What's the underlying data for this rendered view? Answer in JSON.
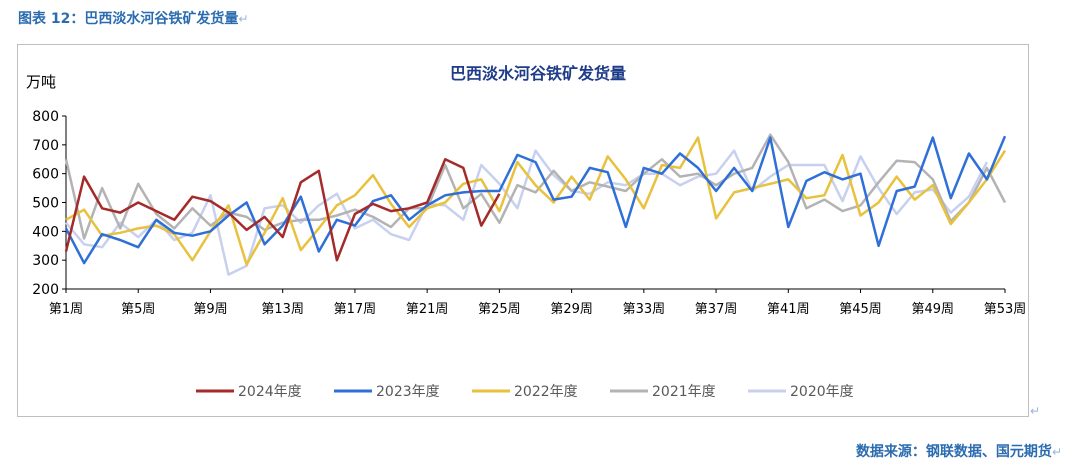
{
  "figure_caption": "图表 12：巴西淡水河谷铁矿发货量",
  "source_note": "数据来源：钢联数据、国元期货",
  "return_mark": "↵",
  "chart_data": {
    "type": "line",
    "title": "巴西淡水河谷铁矿发货量",
    "ylabel": "万吨",
    "xlabel": "",
    "ylim": [
      200,
      800
    ],
    "y_ticks": [
      200,
      300,
      400,
      500,
      600,
      700,
      800
    ],
    "x_tick_labels": [
      "第1周",
      "第5周",
      "第9周",
      "第13周",
      "第17周",
      "第21周",
      "第25周",
      "第29周",
      "第33周",
      "第37周",
      "第41周",
      "第45周",
      "第49周",
      "第53周"
    ],
    "x_tick_weeks": [
      1,
      5,
      9,
      13,
      17,
      21,
      25,
      29,
      33,
      37,
      41,
      45,
      49,
      53
    ],
    "weeks": [
      1,
      2,
      3,
      4,
      5,
      6,
      7,
      8,
      9,
      10,
      11,
      12,
      13,
      14,
      15,
      16,
      17,
      18,
      19,
      20,
      21,
      22,
      23,
      24,
      25,
      26,
      27,
      28,
      29,
      30,
      31,
      32,
      33,
      34,
      35,
      36,
      37,
      38,
      39,
      40,
      41,
      42,
      43,
      44,
      45,
      46,
      47,
      48,
      49,
      50,
      51,
      52,
      53
    ],
    "grid": false,
    "legend_position": "bottom",
    "series": [
      {
        "name": "2024年度",
        "color": "#a52a2a",
        "values": [
          330,
          590,
          480,
          465,
          500,
          470,
          440,
          520,
          505,
          465,
          405,
          450,
          380,
          570,
          610,
          300,
          460,
          495,
          470,
          480,
          500,
          650,
          620,
          420,
          530,
          null,
          null,
          null,
          null,
          null,
          null,
          null,
          null,
          null,
          null,
          null,
          null,
          null,
          null,
          null,
          null,
          null,
          null,
          null,
          null,
          null,
          null,
          null,
          null,
          null,
          null,
          null,
          null
        ]
      },
      {
        "name": "2023年度",
        "color": "#2f6fd8",
        "values": [
          410,
          290,
          390,
          370,
          345,
          440,
          395,
          385,
          400,
          455,
          500,
          355,
          420,
          520,
          330,
          440,
          420,
          505,
          525,
          440,
          490,
          525,
          535,
          540,
          540,
          665,
          640,
          510,
          520,
          620,
          605,
          415,
          620,
          600,
          670,
          620,
          540,
          620,
          540,
          725,
          415,
          575,
          605,
          580,
          600,
          350,
          540,
          555,
          725,
          515,
          670,
          580,
          730
        ]
      },
      {
        "name": "2022年度",
        "color": "#e8c13d",
        "values": [
          440,
          475,
          385,
          395,
          410,
          420,
          390,
          300,
          400,
          490,
          285,
          395,
          515,
          335,
          410,
          490,
          525,
          595,
          495,
          415,
          480,
          500,
          565,
          580,
          470,
          640,
          560,
          500,
          590,
          510,
          660,
          580,
          480,
          630,
          620,
          725,
          445,
          535,
          550,
          565,
          580,
          515,
          525,
          665,
          455,
          500,
          590,
          510,
          560,
          425,
          500,
          580,
          680
        ]
      },
      {
        "name": "2021年度",
        "color": "#b3b3b3",
        "values": [
          650,
          375,
          550,
          410,
          565,
          460,
          410,
          480,
          420,
          465,
          450,
          405,
          430,
          440,
          440,
          455,
          475,
          450,
          415,
          480,
          480,
          630,
          480,
          530,
          430,
          560,
          535,
          610,
          540,
          570,
          555,
          540,
          600,
          650,
          590,
          600,
          560,
          600,
          620,
          735,
          640,
          480,
          510,
          470,
          490,
          570,
          645,
          640,
          580,
          435,
          500,
          620,
          500
        ]
      },
      {
        "name": "2020年度",
        "color": "#c8d0ef",
        "values": [
          430,
          355,
          345,
          430,
          380,
          440,
          370,
          395,
          525,
          250,
          280,
          480,
          490,
          430,
          490,
          530,
          410,
          440,
          390,
          370,
          495,
          490,
          440,
          630,
          565,
          480,
          680,
          595,
          540,
          530,
          570,
          560,
          600,
          600,
          560,
          590,
          600,
          680,
          540,
          590,
          630,
          630,
          630,
          505,
          660,
          550,
          460,
          535,
          545,
          465,
          520,
          640,
          null
        ]
      }
    ]
  }
}
